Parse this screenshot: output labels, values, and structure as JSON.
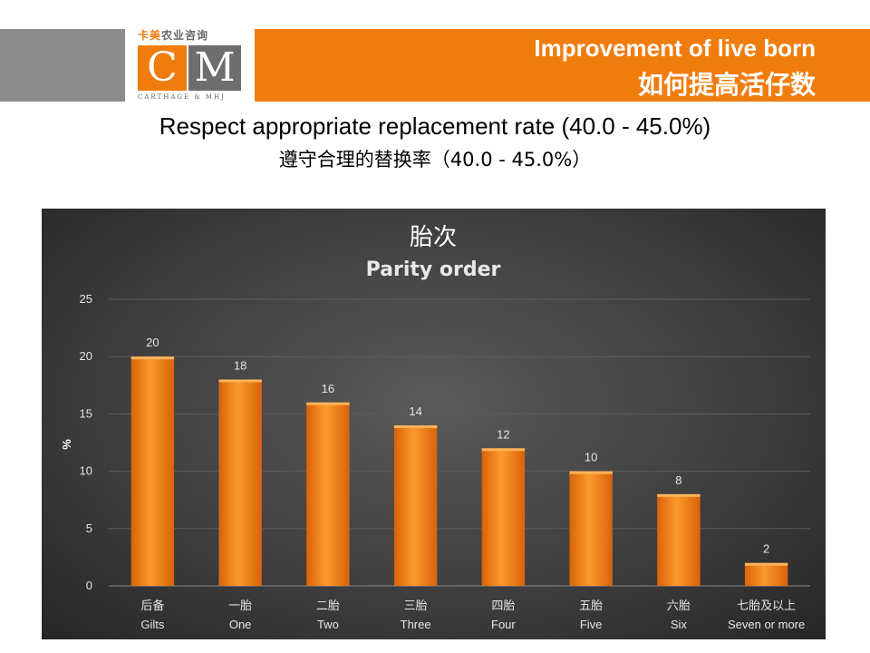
{
  "header": {
    "logo_cn": "卡美农业咨询",
    "logo_letters": [
      "C",
      "M"
    ],
    "logo_sub": "CARTHAGE & MHJ",
    "title_en": "Improvement of live born",
    "title_cn": "如何提高活仔数"
  },
  "subtitle": {
    "en": "Respect appropriate replacement rate (40.0 - 45.0%)",
    "cn": "遵守合理的替换率（40.0 - 45.0%）"
  },
  "colors": {
    "brand_orange": "#f07c0e",
    "bar_fill": "#f5871a",
    "panel_bg": "#3f3f3f"
  },
  "chart_data": {
    "type": "bar",
    "title_cn": "胎次",
    "title": "Parity order",
    "ylabel": "%",
    "xlabel": "",
    "categories_cn": [
      "后备",
      "一胎",
      "二胎",
      "三胎",
      "四胎",
      "五胎",
      "六胎",
      "七胎及以上"
    ],
    "categories": [
      "Gilts",
      "One",
      "Two",
      "Three",
      "Four",
      "Five",
      "Six",
      "Seven or more"
    ],
    "values": [
      20,
      18,
      16,
      14,
      12,
      10,
      8,
      2
    ],
    "ylim": [
      0,
      25
    ],
    "yticks": [
      0,
      5,
      10,
      15,
      20,
      25
    ],
    "grid": true,
    "legend": "none"
  }
}
